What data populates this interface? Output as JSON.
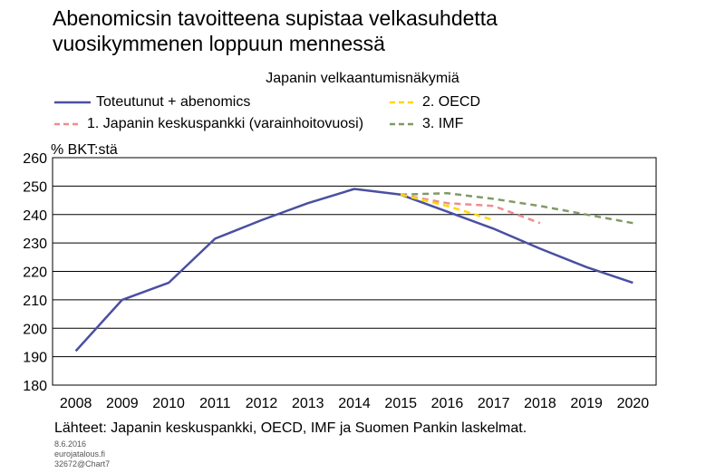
{
  "header": {
    "title_line1": "Abenomicsin tavoitteena supistaa velkasuhdetta",
    "title_line2": "vuosikymmenen loppuun mennessä"
  },
  "chart_data": {
    "type": "line",
    "title": "Japanin velkaantumisnäkymiä",
    "ylabel": "% BKT:stä",
    "ylim": [
      180,
      260
    ],
    "yticks": [
      180,
      190,
      200,
      210,
      220,
      230,
      240,
      250,
      260
    ],
    "categories": [
      "2008",
      "2009",
      "2010",
      "2011",
      "2012",
      "2013",
      "2014",
      "2015",
      "2016",
      "2017",
      "2018",
      "2019",
      "2020"
    ],
    "grid": true,
    "series": [
      {
        "name": "Toteutunut + abenomics",
        "color": "#4b4fa0",
        "dash": "solid",
        "x": [
          2008,
          2009,
          2010,
          2011,
          2012,
          2013,
          2014,
          2015,
          2016,
          2017,
          2018,
          2019,
          2020
        ],
        "values": [
          192,
          210,
          216,
          231.5,
          238,
          244,
          249,
          247,
          241,
          235,
          228,
          221.5,
          216
        ]
      },
      {
        "name": "2. OECD",
        "color": "#ffd700",
        "dash": "dashed",
        "x": [
          2015,
          2016,
          2017
        ],
        "values": [
          247,
          243,
          238
        ]
      },
      {
        "name": "1. Japanin keskuspankki (varainhoitovuosi)",
        "color": "#f08c8c",
        "dash": "dashed",
        "x": [
          2015,
          2016,
          2017,
          2018
        ],
        "values": [
          247,
          244,
          243,
          237
        ]
      },
      {
        "name": "3. IMF",
        "color": "#7f9a65",
        "dash": "dashed",
        "x": [
          2015,
          2016,
          2017,
          2018,
          2019,
          2020
        ],
        "values": [
          247,
          247.5,
          245.5,
          243,
          240,
          237
        ]
      }
    ]
  },
  "footer": {
    "source": "Lähteet: Japanin keskuspankki, OECD, IMF ja Suomen Pankin laskelmat.",
    "date": "8.6.2016",
    "site": "eurojatalous.fi",
    "chart_id": "32672@Chart7"
  }
}
